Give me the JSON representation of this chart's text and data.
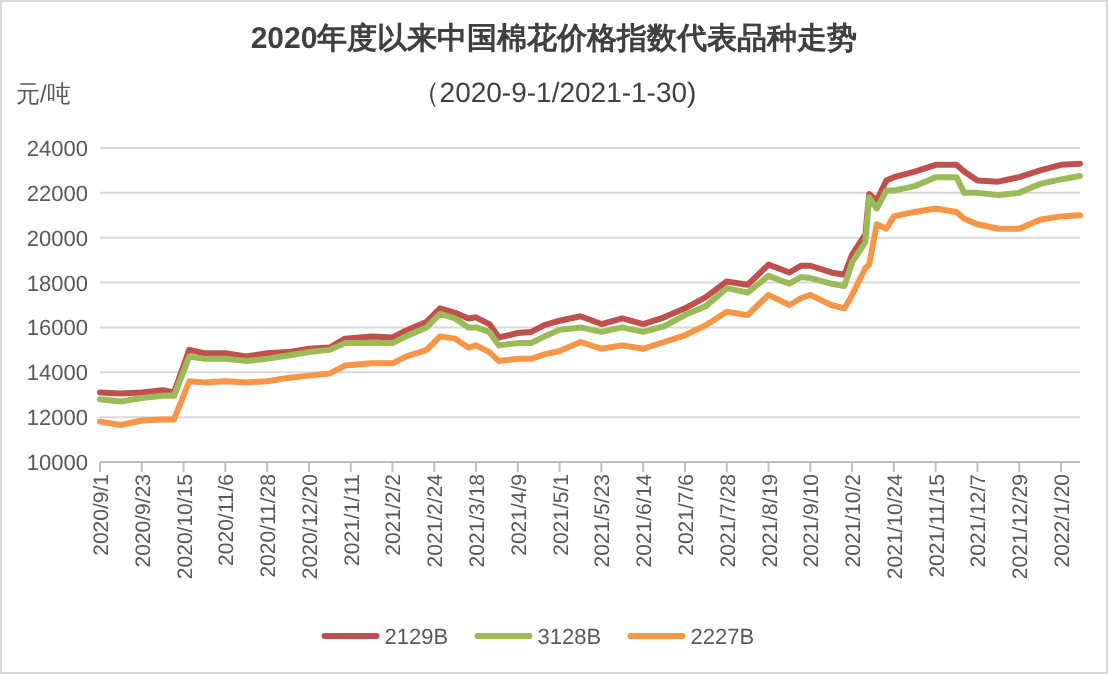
{
  "chart_data": {
    "type": "line",
    "title": "2020年度以来中国棉花价格指数代表品种走势",
    "subtitle": "（2020-9-1/2021-1-30)",
    "ylabel": "元/吨",
    "x": [
      "2020-09-01",
      "2020-09-12",
      "2020-09-23",
      "2020-10-04",
      "2020-10-10",
      "2020-10-18",
      "2020-10-26",
      "2020-11-06",
      "2020-11-17",
      "2020-11-28",
      "2020-12-09",
      "2020-12-20",
      "2020-12-31",
      "2021-01-08",
      "2021-01-22",
      "2021-02-02",
      "2021-02-09",
      "2021-02-20",
      "2021-02-27",
      "2021-03-07",
      "2021-03-14",
      "2021-03-18",
      "2021-03-25",
      "2021-03-30",
      "2021-04-09",
      "2021-04-16",
      "2021-04-23",
      "2021-05-01",
      "2021-05-12",
      "2021-05-23",
      "2021-06-03",
      "2021-06-14",
      "2021-06-25",
      "2021-07-06",
      "2021-07-17",
      "2021-07-28",
      "2021-08-08",
      "2021-08-19",
      "2021-08-30",
      "2021-09-05",
      "2021-09-10",
      "2021-09-21",
      "2021-09-28",
      "2021-10-02",
      "2021-10-09",
      "2021-10-11",
      "2021-10-15",
      "2021-10-20",
      "2021-10-24",
      "2021-11-04",
      "2021-11-15",
      "2021-11-26",
      "2021-11-30",
      "2021-12-07",
      "2021-12-18",
      "2021-12-29",
      "2022-01-09",
      "2022-01-20",
      "2022-01-30"
    ],
    "series": [
      {
        "name": "2129B",
        "color": "#c0504d",
        "values": [
          13100,
          13050,
          13100,
          13200,
          13100,
          15000,
          14850,
          14850,
          14700,
          14850,
          14900,
          15050,
          15100,
          15500,
          15600,
          15550,
          15850,
          16250,
          16850,
          16650,
          16400,
          16450,
          16150,
          15550,
          15750,
          15800,
          16100,
          16300,
          16500,
          16150,
          16400,
          16150,
          16450,
          16850,
          17350,
          18050,
          17900,
          18800,
          18450,
          18750,
          18750,
          18450,
          18350,
          19250,
          20150,
          21950,
          21650,
          22550,
          22700,
          22950,
          23250,
          23250,
          22950,
          22550,
          22500,
          22700,
          23000,
          23250,
          23300
        ]
      },
      {
        "name": "3128B",
        "color": "#9bbb59",
        "values": [
          12800,
          12700,
          12850,
          12950,
          12950,
          14700,
          14600,
          14600,
          14500,
          14600,
          14750,
          14900,
          15000,
          15300,
          15300,
          15300,
          15600,
          16000,
          16600,
          16400,
          16000,
          16000,
          15800,
          15200,
          15300,
          15300,
          15600,
          15900,
          16000,
          15800,
          16000,
          15800,
          16050,
          16550,
          16950,
          17750,
          17550,
          18300,
          17950,
          18250,
          18200,
          17950,
          17850,
          18900,
          19800,
          21800,
          21300,
          22100,
          22100,
          22300,
          22700,
          22700,
          22000,
          22000,
          21900,
          22000,
          22400,
          22600,
          22750
        ]
      },
      {
        "name": "2227B",
        "color": "#f79646",
        "values": [
          11800,
          11650,
          11850,
          11900,
          11900,
          13600,
          13550,
          13600,
          13550,
          13600,
          13750,
          13850,
          13950,
          14300,
          14400,
          14400,
          14700,
          15000,
          15600,
          15500,
          15100,
          15200,
          14900,
          14500,
          14600,
          14600,
          14800,
          14950,
          15350,
          15050,
          15200,
          15050,
          15350,
          15650,
          16100,
          16700,
          16550,
          17450,
          17000,
          17300,
          17450,
          17000,
          16850,
          17450,
          18650,
          18800,
          20600,
          20400,
          20950,
          21150,
          21300,
          21150,
          20850,
          20600,
          20400,
          20400,
          20800,
          20950,
          21000
        ]
      }
    ],
    "xlim": [
      "2020-09-01",
      "2022-01-30"
    ],
    "xticks": [
      {
        "value": "2020-09-01",
        "label": "2020/9/1"
      },
      {
        "value": "2020-09-23",
        "label": "2020/9/23"
      },
      {
        "value": "2020-10-15",
        "label": "2020/10/15"
      },
      {
        "value": "2020-11-06",
        "label": "2020/11/6"
      },
      {
        "value": "2020-11-28",
        "label": "2020/11/28"
      },
      {
        "value": "2020-12-20",
        "label": "2020/12/20"
      },
      {
        "value": "2021-01-11",
        "label": "2021/1/11"
      },
      {
        "value": "2021-02-02",
        "label": "2021/2/2"
      },
      {
        "value": "2021-02-24",
        "label": "2021/2/24"
      },
      {
        "value": "2021-03-18",
        "label": "2021/3/18"
      },
      {
        "value": "2021-04-09",
        "label": "2021/4/9"
      },
      {
        "value": "2021-05-01",
        "label": "2021/5/1"
      },
      {
        "value": "2021-05-23",
        "label": "2021/5/23"
      },
      {
        "value": "2021-06-14",
        "label": "2021/6/14"
      },
      {
        "value": "2021-07-06",
        "label": "2021/7/6"
      },
      {
        "value": "2021-07-28",
        "label": "2021/7/28"
      },
      {
        "value": "2021-08-19",
        "label": "2021/8/19"
      },
      {
        "value": "2021-09-10",
        "label": "2021/9/10"
      },
      {
        "value": "2021-10-02",
        "label": "2021/10/2"
      },
      {
        "value": "2021-10-24",
        "label": "2021/10/24"
      },
      {
        "value": "2021-11-15",
        "label": "2021/11/15"
      },
      {
        "value": "2021-12-07",
        "label": "2021/12/7"
      },
      {
        "value": "2021-12-29",
        "label": "2021/12/29"
      },
      {
        "value": "2022-01-20",
        "label": "2022/1/20"
      }
    ],
    "ylim": [
      10000,
      24000
    ],
    "yticks": [
      10000,
      12000,
      14000,
      16000,
      18000,
      20000,
      22000,
      24000
    ],
    "grid": "y",
    "legend": "bottom",
    "marker": "none",
    "line_style": "solid"
  }
}
